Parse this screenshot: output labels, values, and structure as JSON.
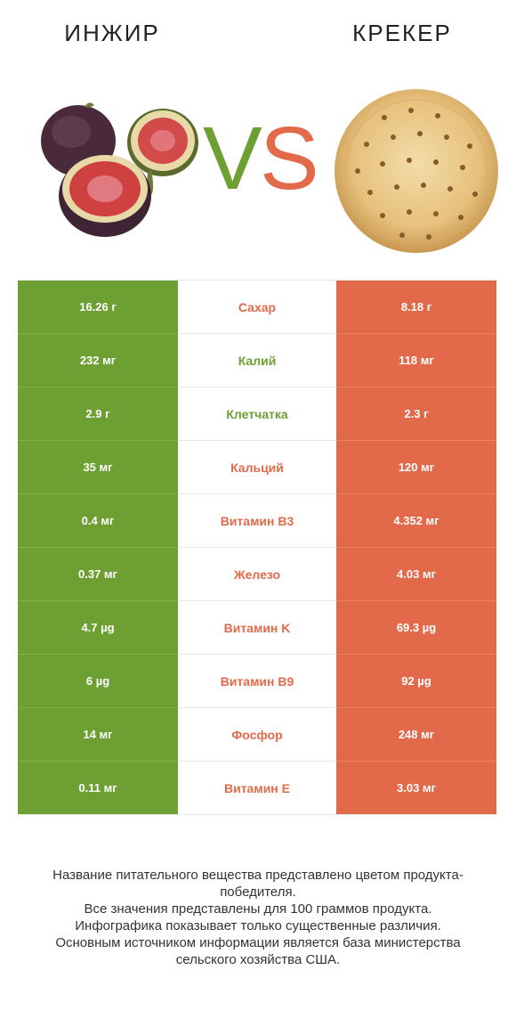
{
  "header": {
    "left_title": "ИНЖИР",
    "right_title": "КРЕКЕР",
    "vs_v": "V",
    "vs_s": "S"
  },
  "colors": {
    "left_product": "#6e9f33",
    "right_product": "#e26a4b"
  },
  "illustrations": {
    "left": "fig-illustration",
    "right": "cracker-illustration"
  },
  "rows": [
    {
      "left": "16.26 г",
      "nutrient": "Сахар",
      "right": "8.18 г",
      "winner": "right"
    },
    {
      "left": "232 мг",
      "nutrient": "Калий",
      "right": "118 мг",
      "winner": "left"
    },
    {
      "left": "2.9 г",
      "nutrient": "Клетчатка",
      "right": "2.3 г",
      "winner": "left"
    },
    {
      "left": "35 мг",
      "nutrient": "Кальций",
      "right": "120 мг",
      "winner": "right"
    },
    {
      "left": "0.4 мг",
      "nutrient": "Витамин B3",
      "right": "4.352 мг",
      "winner": "right"
    },
    {
      "left": "0.37 мг",
      "nutrient": "Железо",
      "right": "4.03 мг",
      "winner": "right"
    },
    {
      "left": "4.7 µg",
      "nutrient": "Витамин K",
      "right": "69.3 µg",
      "winner": "right"
    },
    {
      "left": "6 µg",
      "nutrient": "Витамин B9",
      "right": "92 µg",
      "winner": "right"
    },
    {
      "left": "14 мг",
      "nutrient": "Фосфор",
      "right": "248 мг",
      "winner": "right"
    },
    {
      "left": "0.11 мг",
      "nutrient": "Витамин E",
      "right": "3.03 мг",
      "winner": "right"
    }
  ],
  "footnote": {
    "line1": "Название питательного вещества представлено цветом продукта-победителя.",
    "line2": "Все значения представлены для 100 граммов продукта.",
    "line3": "Инфографика показывает только существенные различия.",
    "line4": "Основным источником информации является база министерства сельского хозяйства США."
  }
}
